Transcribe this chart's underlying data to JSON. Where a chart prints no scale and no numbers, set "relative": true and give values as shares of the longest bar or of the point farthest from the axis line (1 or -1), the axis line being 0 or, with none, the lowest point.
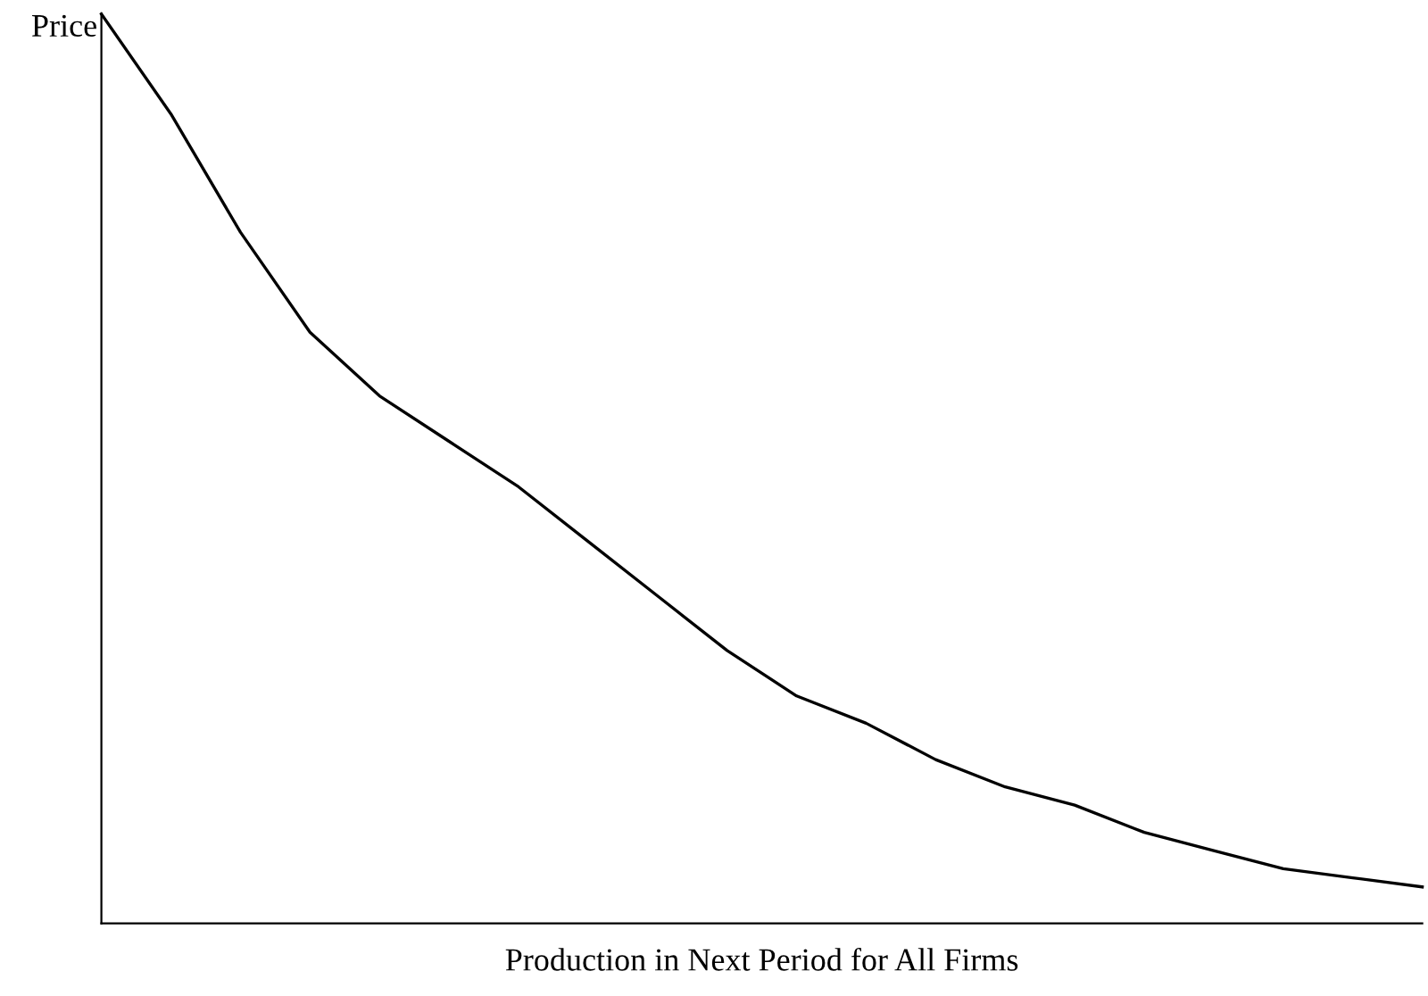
{
  "chart_data": {
    "type": "line",
    "relative": true,
    "xlabel": "Production in Next Period for All Firms",
    "ylabel": "Price",
    "categories": [
      null,
      null,
      null,
      null,
      null,
      null,
      null,
      null,
      null,
      null,
      null,
      null,
      null,
      null,
      null,
      null,
      null,
      null,
      null,
      null
    ],
    "series": [
      {
        "color": "#000000",
        "values": [
          1.0,
          0.89,
          0.76,
          0.65,
          0.58,
          0.53,
          0.48,
          0.42,
          0.36,
          0.3,
          0.25,
          0.22,
          0.18,
          0.15,
          0.13,
          0.1,
          0.08,
          0.06,
          0.05,
          0.04
        ]
      }
    ],
    "legend": false,
    "marker": "none",
    "line_style": "solid"
  }
}
